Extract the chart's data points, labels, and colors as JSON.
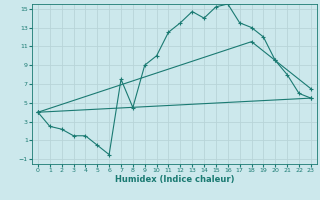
{
  "xlabel": "Humidex (Indice chaleur)",
  "bg_color": "#cce8ec",
  "line_color": "#1a7a72",
  "grid_color": "#b8d4d8",
  "xlim": [
    -0.5,
    23.5
  ],
  "ylim": [
    -1.5,
    15.5
  ],
  "xticks": [
    0,
    1,
    2,
    3,
    4,
    5,
    6,
    7,
    8,
    9,
    10,
    11,
    12,
    13,
    14,
    15,
    16,
    17,
    18,
    19,
    20,
    21,
    22,
    23
  ],
  "yticks": [
    -1,
    1,
    3,
    5,
    7,
    9,
    11,
    13,
    15
  ],
  "line1_x": [
    0,
    1,
    2,
    3,
    4,
    5,
    6,
    7,
    8,
    9,
    10,
    11,
    12,
    13,
    14,
    15,
    16,
    17,
    18,
    19,
    20,
    21,
    22,
    23
  ],
  "line1_y": [
    4.0,
    2.5,
    2.2,
    1.5,
    1.5,
    0.5,
    -0.5,
    7.5,
    4.5,
    9.0,
    10.0,
    12.5,
    13.5,
    14.7,
    14.0,
    15.2,
    15.5,
    13.5,
    13.0,
    12.0,
    9.5,
    8.0,
    6.0,
    5.5
  ],
  "line2_x": [
    0,
    18,
    20,
    23
  ],
  "line2_y": [
    4.0,
    11.5,
    9.5,
    6.5
  ],
  "line3_x": [
    0,
    23
  ],
  "line3_y": [
    4.0,
    5.5
  ],
  "tick_fontsize": 4.5,
  "xlabel_fontsize": 6.0
}
